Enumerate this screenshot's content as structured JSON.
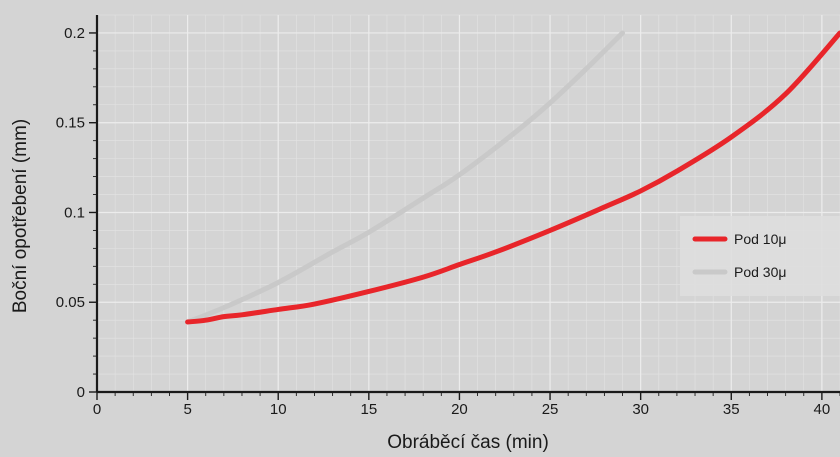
{
  "chart_data": {
    "type": "line",
    "title": "",
    "xlabel": "Obráběcí čas (min)",
    "ylabel": "Boční opotřebení (mm)",
    "xlim": [
      0,
      41
    ],
    "ylim": [
      0,
      0.21
    ],
    "x_ticks": [
      0,
      5,
      10,
      15,
      20,
      25,
      30,
      35,
      40
    ],
    "y_ticks": [
      0,
      0.05,
      0.1,
      0.15,
      0.2
    ],
    "x_tick_labels": [
      "0",
      "5",
      "10",
      "15",
      "20",
      "25",
      "30",
      "35",
      "40"
    ],
    "y_tick_labels": [
      "0",
      "0.05",
      "0.1",
      "0.15",
      "0.2"
    ],
    "grid": true,
    "legend_position": "right",
    "series": [
      {
        "name": "Pod 10μ",
        "color": "#e8252a",
        "x": [
          5,
          6,
          7,
          8,
          10,
          12,
          15,
          18,
          20,
          22,
          25,
          28,
          30,
          32,
          35,
          38,
          41
        ],
        "y": [
          0.039,
          0.04,
          0.042,
          0.043,
          0.046,
          0.049,
          0.056,
          0.064,
          0.071,
          0.078,
          0.09,
          0.103,
          0.112,
          0.123,
          0.142,
          0.166,
          0.2
        ]
      },
      {
        "name": "Pod 30μ",
        "color": "#c9c9c9",
        "x": [
          5,
          7,
          10,
          13,
          15,
          18,
          20,
          23,
          25,
          27,
          29
        ],
        "y": [
          0.039,
          0.047,
          0.061,
          0.078,
          0.089,
          0.108,
          0.121,
          0.144,
          0.161,
          0.18,
          0.2
        ]
      }
    ]
  }
}
